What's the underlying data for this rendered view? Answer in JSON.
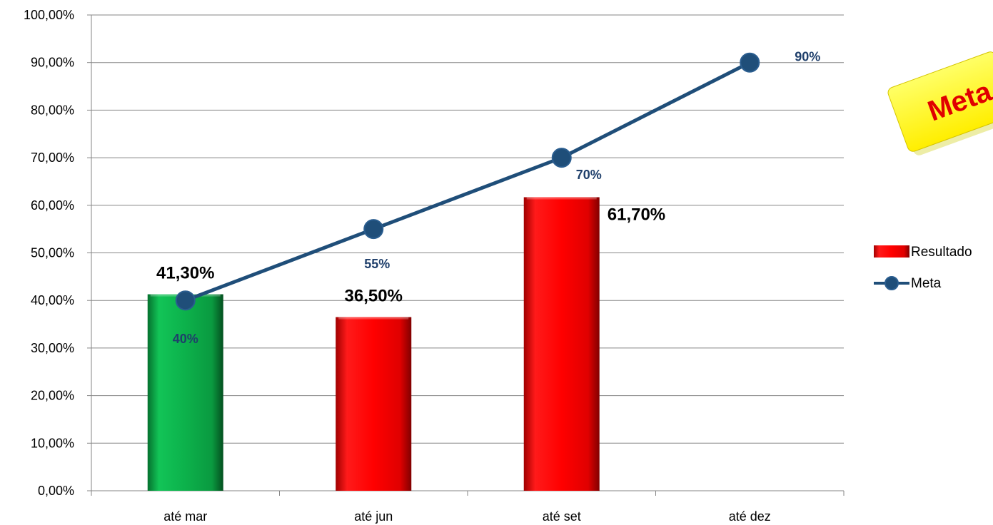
{
  "chart_data": {
    "type": "bar",
    "categories": [
      "até mar",
      "até jun",
      "até set",
      "até dez"
    ],
    "ylim": [
      0,
      100
    ],
    "yticks": [
      "0,00%",
      "10,00%",
      "20,00%",
      "30,00%",
      "40,00%",
      "50,00%",
      "60,00%",
      "70,00%",
      "80,00%",
      "90,00%",
      "100,00%"
    ],
    "series": [
      {
        "name": "Resultado",
        "type": "bar",
        "values": [
          41.3,
          36.5,
          61.7,
          null
        ],
        "labels": [
          "41,30%",
          "36,50%",
          "61,70%",
          ""
        ],
        "colors": [
          "#0cb14b",
          "#ff0000",
          "#ff0000",
          "#ff0000"
        ]
      },
      {
        "name": "Meta",
        "type": "line",
        "values": [
          40,
          55,
          70,
          90
        ],
        "labels": [
          "40%",
          "55%",
          "70%",
          "90%"
        ],
        "color": "#1f4e79"
      }
    ],
    "legend_position": "right",
    "grid": true
  },
  "sticker": {
    "text": "Meta",
    "color": "#ffff00",
    "text_color": "#e00000"
  }
}
